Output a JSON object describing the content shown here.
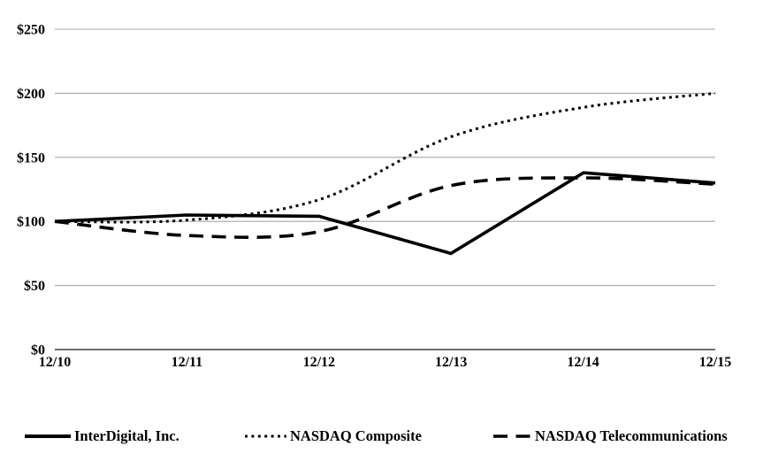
{
  "chart_data": {
    "type": "line",
    "title": "",
    "xlabel": "",
    "ylabel": "",
    "categories": [
      "12/10",
      "12/11",
      "12/12",
      "12/13",
      "12/14",
      "12/15"
    ],
    "series": [
      {
        "name": "InterDigital, Inc.",
        "values": [
          100,
          105,
          104,
          75,
          138,
          130
        ],
        "line_style": "solid",
        "smooth": false
      },
      {
        "name": "NASDAQ Composite",
        "values": [
          100,
          101,
          117,
          166,
          189,
          200
        ],
        "line_style": "dotted",
        "smooth": true
      },
      {
        "name": "NASDAQ Telecommunications",
        "values": [
          100,
          89,
          92,
          128,
          134,
          129
        ],
        "line_style": "dashed",
        "smooth": true
      }
    ],
    "ylim": [
      0,
      250
    ],
    "y_ticks": [
      0,
      50,
      100,
      150,
      200,
      250
    ],
    "y_tick_labels": [
      "$0",
      "$50",
      "$100",
      "$150",
      "$200",
      "$250"
    ],
    "grid": true,
    "legend_position": "bottom",
    "colors": {
      "line": "#000000",
      "grid": "#a6a6a6",
      "axis": "#595959",
      "text": "#000000",
      "background": "#ffffff"
    }
  }
}
